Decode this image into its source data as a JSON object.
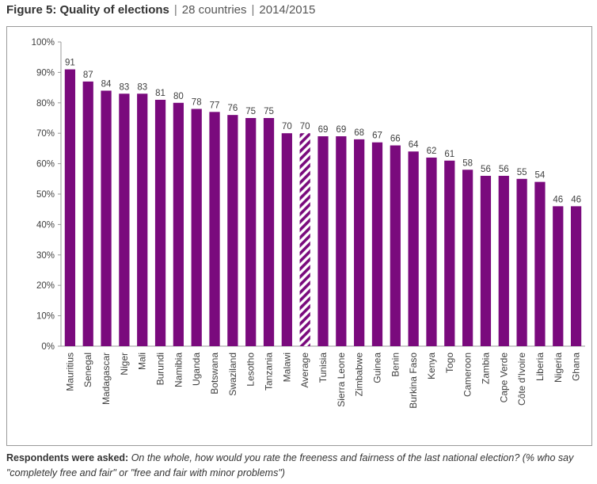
{
  "header": {
    "title": "Figure 5: Quality of elections",
    "subtitle1": "28 countries",
    "subtitle2": "2014/2015"
  },
  "footnote": {
    "label": "Respondents were asked:",
    "question": "On the whole, how would you rate the freeness and fairness of the last national election? (% who say \"completely free and fair\" or \"free and fair with minor problems\")"
  },
  "colors": {
    "bar": "#7a0a7d",
    "average_stripe": "#7a0a7d",
    "axis": "#999999",
    "text": "#404040"
  },
  "chart_data": {
    "type": "bar",
    "title": "Quality of elections",
    "xlabel": "",
    "ylabel": "",
    "ylim": [
      0,
      100
    ],
    "yticks": [
      "0%",
      "10%",
      "20%",
      "30%",
      "40%",
      "50%",
      "60%",
      "70%",
      "80%",
      "90%",
      "100%"
    ],
    "categories": [
      "Mauritius",
      "Senegal",
      "Madagascar",
      "Niger",
      "Mali",
      "Burundi",
      "Namibia",
      "Uganda",
      "Botswana",
      "Swaziland",
      "Lesotho",
      "Tanzania",
      "Malawi",
      "Average",
      "Tunisia",
      "Sierra Leone",
      "Zimbabwe",
      "Guinea",
      "Benin",
      "Burkina Faso",
      "Kenya",
      "Togo",
      "Cameroon",
      "Zambia",
      "Cape Verde",
      "Côte d'Ivoire",
      "Liberia",
      "Nigeria",
      "Ghana"
    ],
    "values": [
      91,
      87,
      84,
      83,
      83,
      81,
      80,
      78,
      77,
      76,
      75,
      75,
      70,
      70,
      69,
      69,
      68,
      67,
      66,
      64,
      62,
      61,
      58,
      56,
      56,
      55,
      54,
      46,
      46
    ],
    "highlight": "Average"
  }
}
